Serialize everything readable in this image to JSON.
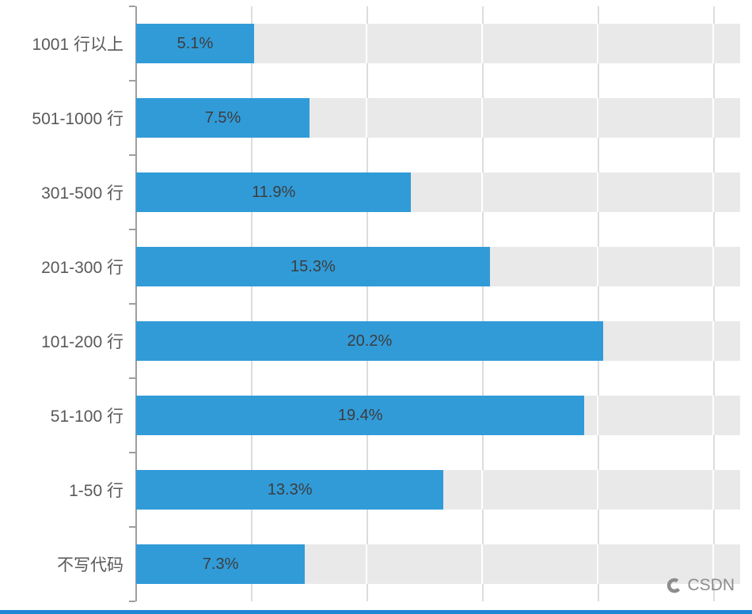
{
  "chart_data": {
    "type": "bar",
    "orientation": "horizontal",
    "title": "",
    "xlabel": "",
    "ylabel": "",
    "categories": [
      "1001 行以上",
      "501-1000 行",
      "301-500 行",
      "201-300 行",
      "101-200 行",
      "51-100 行",
      "1-50 行",
      "不写代码"
    ],
    "values": [
      5.1,
      7.5,
      11.9,
      15.3,
      20.2,
      19.4,
      13.3,
      7.3
    ],
    "value_labels": [
      "5.1%",
      "7.5%",
      "11.9%",
      "15.3%",
      "20.2%",
      "19.4%",
      "13.3%",
      "7.3%"
    ],
    "xlim": [
      0,
      25
    ],
    "x_gridlines": [
      5,
      10,
      15,
      20,
      25
    ],
    "grid": "vertical",
    "legend_position": "none",
    "bar_color": "#319bd8",
    "track_color": "#e9e9e9",
    "accent_line_color": "#2086d6"
  },
  "watermark": {
    "text": "CSDN"
  }
}
